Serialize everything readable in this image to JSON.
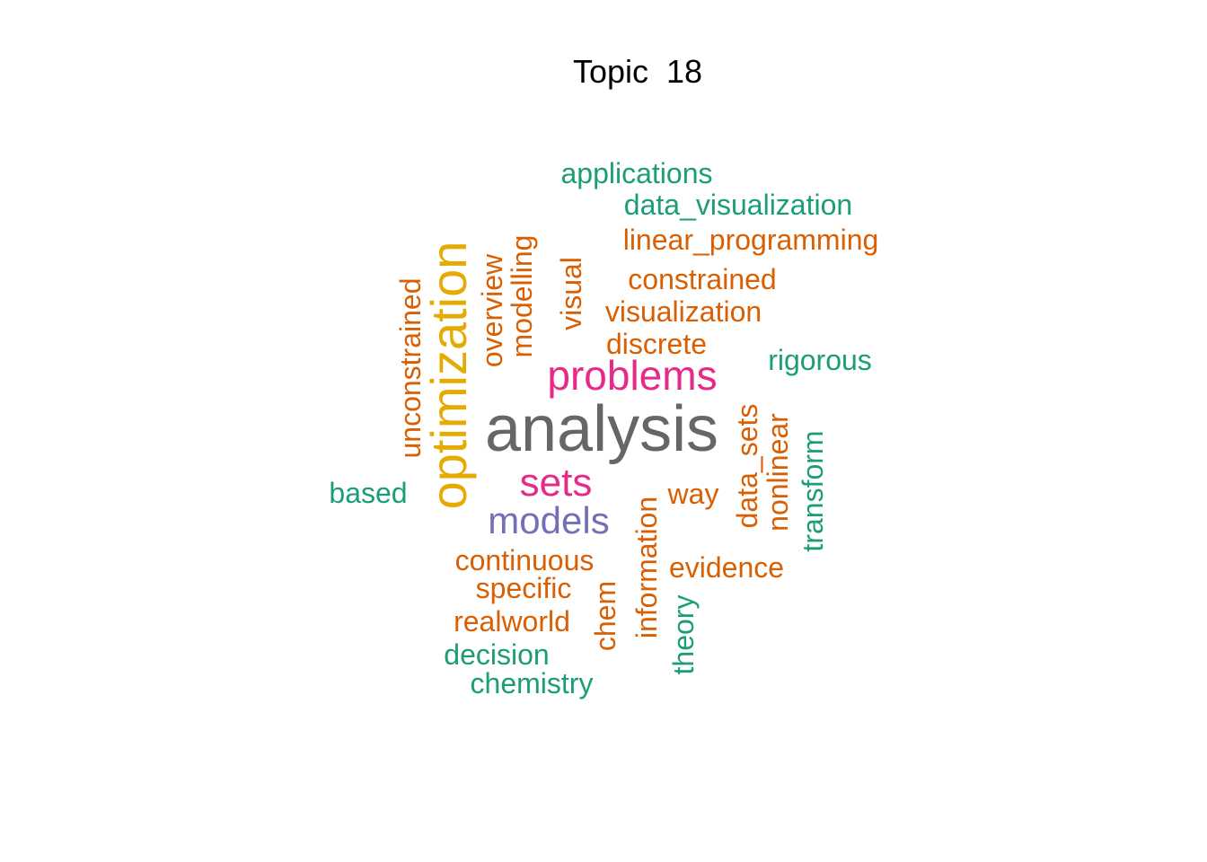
{
  "title": "Topic  18",
  "colors": {
    "gray": "#666666",
    "gold": "#E6AB02",
    "magenta": "#E7298A",
    "purple": "#7570B3",
    "orange": "#D95F02",
    "teal": "#1B9E77"
  },
  "words": [
    {
      "text": "analysis",
      "color": "gray"
    },
    {
      "text": "optimization",
      "color": "gold"
    },
    {
      "text": "problems",
      "color": "magenta"
    },
    {
      "text": "sets",
      "color": "magenta"
    },
    {
      "text": "models",
      "color": "purple"
    },
    {
      "text": "applications",
      "color": "teal"
    },
    {
      "text": "data_visualization",
      "color": "teal"
    },
    {
      "text": "linear_programming",
      "color": "orange"
    },
    {
      "text": "constrained",
      "color": "orange"
    },
    {
      "text": "visualization",
      "color": "orange"
    },
    {
      "text": "discrete",
      "color": "orange"
    },
    {
      "text": "rigorous",
      "color": "teal"
    },
    {
      "text": "unconstrained",
      "color": "orange"
    },
    {
      "text": "overview",
      "color": "orange"
    },
    {
      "text": "modelling",
      "color": "orange"
    },
    {
      "text": "visual",
      "color": "orange"
    },
    {
      "text": "based",
      "color": "teal"
    },
    {
      "text": "way",
      "color": "orange"
    },
    {
      "text": "data_sets",
      "color": "orange"
    },
    {
      "text": "nonlinear",
      "color": "orange"
    },
    {
      "text": "transform",
      "color": "teal"
    },
    {
      "text": "information",
      "color": "orange"
    },
    {
      "text": "continuous",
      "color": "orange"
    },
    {
      "text": "evidence",
      "color": "orange"
    },
    {
      "text": "specific",
      "color": "orange"
    },
    {
      "text": "realworld",
      "color": "orange"
    },
    {
      "text": "chem",
      "color": "orange"
    },
    {
      "text": "theory",
      "color": "teal"
    },
    {
      "text": "decision",
      "color": "teal"
    },
    {
      "text": "chemistry",
      "color": "teal"
    }
  ]
}
